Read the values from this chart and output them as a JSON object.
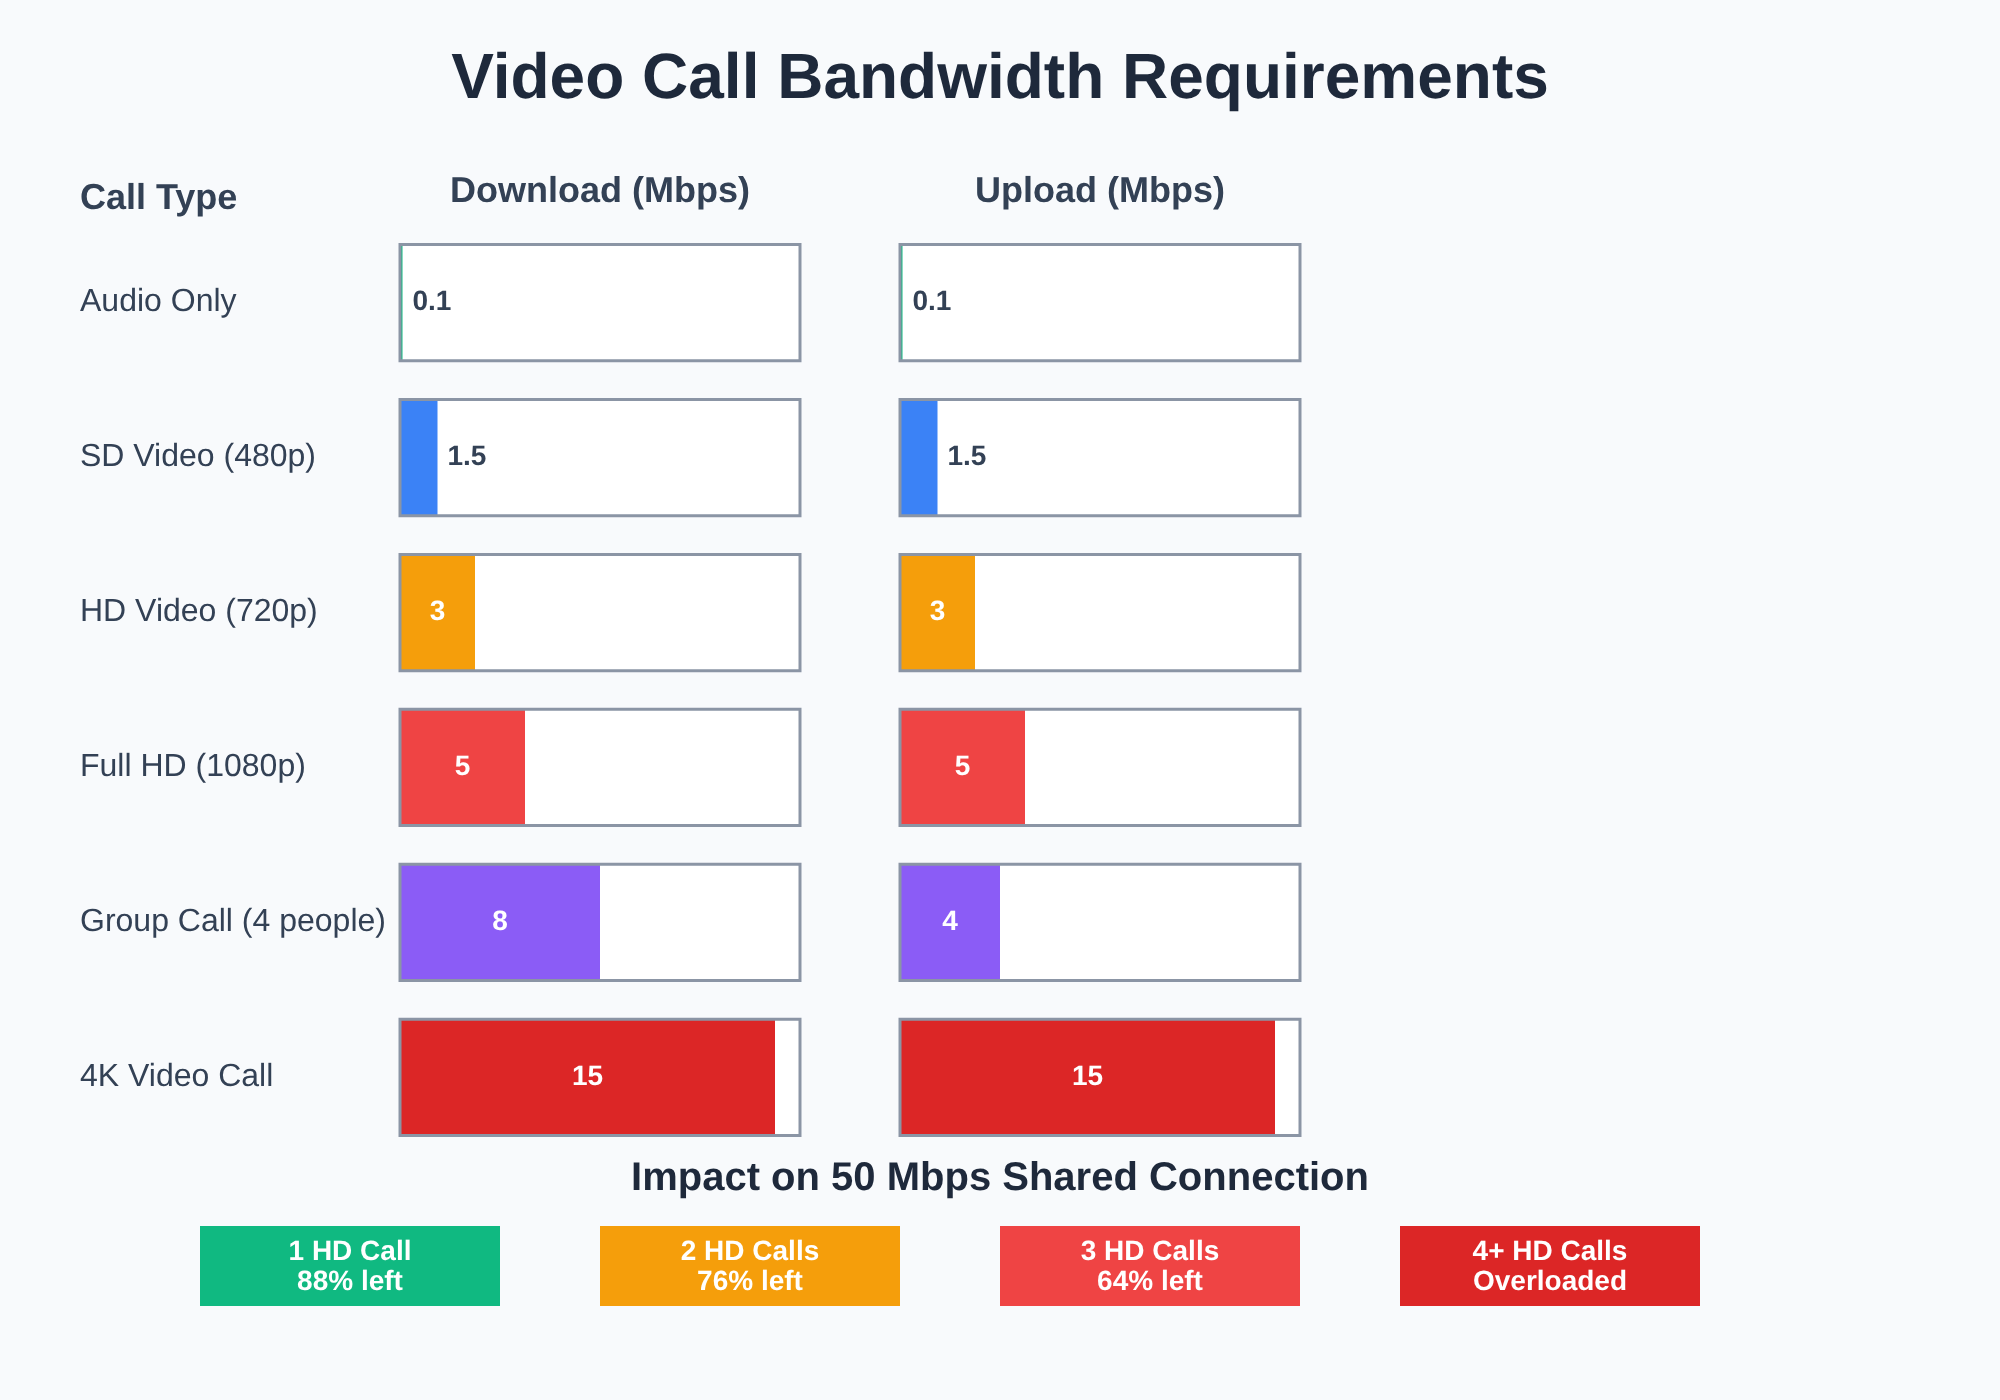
{
  "chart_data": [
    {
      "type": "bar",
      "title": "Video Call Bandwidth Requirements",
      "xlabel": "Download (Mbps)",
      "ylabel": "Call Type",
      "orientation": "horizontal",
      "categories": [
        "Audio Only",
        "SD Video (480p)",
        "HD Video (720p)",
        "Full HD (1080p)",
        "Group Call (4 people)",
        "4K Video Call"
      ],
      "values": [
        0.1,
        1.5,
        3,
        5,
        8,
        15
      ],
      "colors": [
        "#10b981",
        "#3b82f6",
        "#f59e0b",
        "#ef4444",
        "#8b5cf6",
        "#dc2626"
      ],
      "xlim": [
        0,
        16
      ],
      "data_labels": true,
      "tick_labels": "y",
      "grid": false,
      "legend": false
    },
    {
      "type": "bar",
      "xlabel": "Upload (Mbps)",
      "orientation": "horizontal",
      "categories": [
        null,
        null,
        null,
        null,
        null,
        null
      ],
      "values": [
        0.1,
        1.5,
        3,
        5,
        4,
        15
      ],
      "colors": [
        "#10b981",
        "#3b82f6",
        "#f59e0b",
        "#ef4444",
        "#8b5cf6",
        "#dc2626"
      ],
      "xlim": [
        0,
        16
      ],
      "data_labels": true,
      "tick_labels": false,
      "grid": false,
      "legend": false
    },
    {
      "type": "other",
      "title": "Impact on 50 Mbps Shared Connection",
      "annotations": [
        "1 HD Call\n88% left",
        "2 HD Calls\n76% left",
        "3 HD Calls\n64% left",
        "4+ HD Calls\nOverloaded"
      ],
      "colors": [
        "#10b981",
        "#f59e0b",
        "#ef4444",
        "#dc2626"
      ]
    }
  ]
}
